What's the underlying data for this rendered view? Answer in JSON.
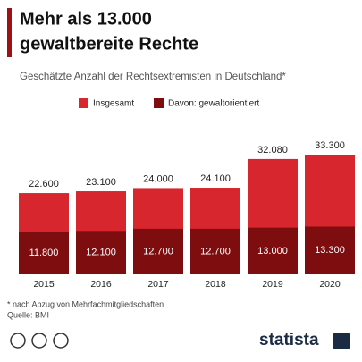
{
  "chart_data": {
    "type": "bar",
    "title": [
      "Mehr als 13.000",
      "gewaltbereite Rechte"
    ],
    "subtitle": "Geschätzte Anzahl der Rechtsextremisten in Deutschland*",
    "categories": [
      "2015",
      "2016",
      "2017",
      "2018",
      "2019",
      "2020"
    ],
    "series": [
      {
        "name": "Insgesamt",
        "color": "#d7262d",
        "values": [
          22600,
          23100,
          24000,
          24100,
          32080,
          33300
        ],
        "value_labels": [
          "22.600",
          "23.100",
          "24.000",
          "24.100",
          "32.080",
          "33.300"
        ]
      },
      {
        "name": "Davon: gewaltorientiert",
        "color": "#7d0d0f",
        "values": [
          11800,
          12100,
          12700,
          12700,
          13000,
          13300
        ],
        "value_labels": [
          "11.800",
          "12.100",
          "12.700",
          "12.700",
          "13.000",
          "13.300"
        ]
      }
    ],
    "legend": "top"
  },
  "footnote": "* nach Abzug von Mehrfachmitgliedschaften",
  "source": "Quelle: BMI",
  "logo": "statista"
}
